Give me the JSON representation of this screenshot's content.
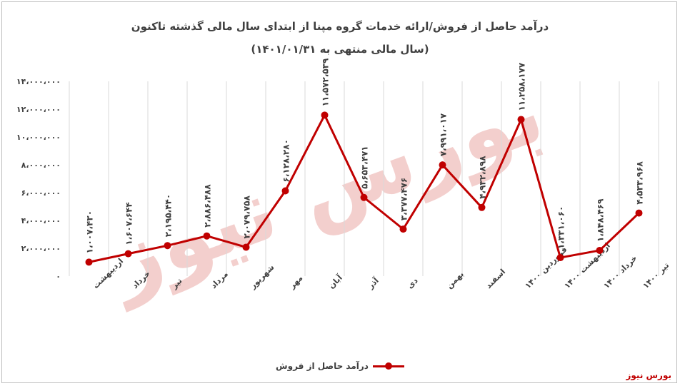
{
  "colors": {
    "series": "#c00000",
    "grid": "#d9d9d9",
    "text": "#404040",
    "watermark": "#e8a09c"
  },
  "watermark": "بورس نیوز",
  "source": "بورس نیوز",
  "chart_data": {
    "type": "line",
    "title": "درآمد حاصل از فروش/ارائه خدمات گروه مپنا از ابتدای سال مالی گذشته تاکنون",
    "subtitle": "(سال مالی منتهی به ۱۴۰۱/۰۱/۳۱)",
    "xlabel": "",
    "ylabel": "",
    "ylim": [
      0,
      14000000
    ],
    "yticks": [
      0,
      2000000,
      4000000,
      6000000,
      8000000,
      10000000,
      12000000,
      14000000
    ],
    "ytick_labels": [
      "۰",
      "۲،۰۰۰،۰۰۰",
      "۴،۰۰۰،۰۰۰",
      "۶،۰۰۰،۰۰۰",
      "۸،۰۰۰،۰۰۰",
      "۱۰،۰۰۰،۰۰۰",
      "۱۲،۰۰۰،۰۰۰",
      "۱۴،۰۰۰،۰۰۰"
    ],
    "grid": "vertical",
    "legend_position": "bottom",
    "categories": [
      "اردیبهشت",
      "خرداد",
      "تیر",
      "مرداد",
      "شهریور",
      "مهر",
      "آبان",
      "آذر",
      "دی",
      "بهمن",
      "اسفند",
      "فروردین ۱۴۰۰",
      "اردیبهشت ۱۴۰۰",
      "خرداد ۱۴۰۰",
      "تیر ۱۴۰۰"
    ],
    "series": [
      {
        "name": "درآمد حاصل از فروش",
        "values": [
          1007430,
          1607644,
          2195440,
          2886488,
          2079758,
          6128280,
          11572539,
          5653471,
          3377476,
          7991017,
          4932898,
          11258177,
          1331060,
          1848469,
          4533968
        ],
        "labels": [
          "۱،۰۰۷،۴۳۰",
          "۱،۶۰۷،۶۴۴",
          "۲،۱۹۵،۴۴۰",
          "۲،۸۸۶،۴۸۸",
          "۲،۰۷۹،۷۵۸",
          "۶،۱۲۸،۲۸۰",
          "۱۱،۵۷۲،۵۳۹",
          "۵،۶۵۳،۴۷۱",
          "۳،۳۷۷،۴۷۶",
          "۷،۹۹۱،۰۱۷",
          "۴،۹۳۲،۸۹۸",
          "۱۱،۲۵۸،۱۷۷",
          "۱،۳۳۱،۰۶۰",
          "۱،۸۴۸،۴۶۹",
          "۴،۵۳۳،۹۶۸"
        ]
      }
    ]
  }
}
